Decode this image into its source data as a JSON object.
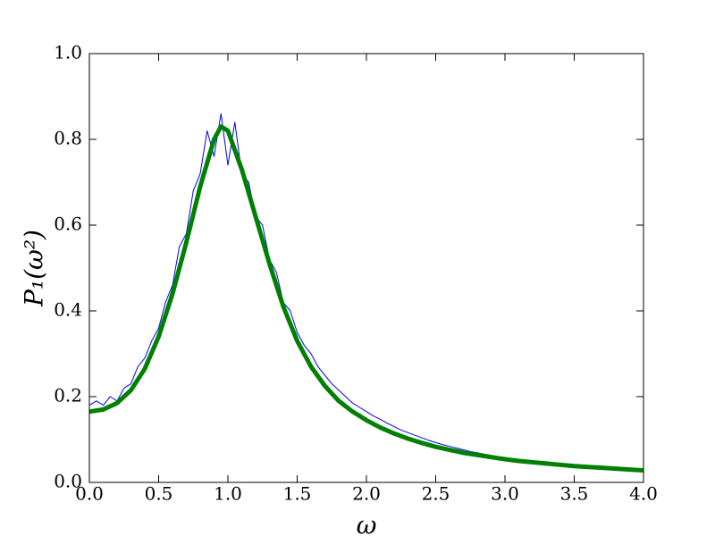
{
  "chart_data": {
    "type": "line",
    "x_label": "ω",
    "y_label": "P₁(ω²)",
    "xlim": [
      0,
      4
    ],
    "ylim": [
      0,
      1
    ],
    "xticks": [
      {
        "value": 0,
        "label": "0.0"
      },
      {
        "value": 0.5,
        "label": "0.5"
      },
      {
        "value": 1,
        "label": "1.0"
      },
      {
        "value": 1.5,
        "label": "1.5"
      },
      {
        "value": 2,
        "label": "2.0"
      },
      {
        "value": 2.5,
        "label": "2.5"
      },
      {
        "value": 3,
        "label": "3.0"
      },
      {
        "value": 3.5,
        "label": "3.5"
      },
      {
        "value": 4,
        "label": "4.0"
      }
    ],
    "yticks": [
      {
        "value": 0,
        "label": "0.0"
      },
      {
        "value": 0.2,
        "label": "0.2"
      },
      {
        "value": 0.4,
        "label": "0.4"
      },
      {
        "value": 0.6,
        "label": "0.6"
      },
      {
        "value": 0.8,
        "label": "0.8"
      },
      {
        "value": 1,
        "label": "1.0"
      }
    ],
    "grid": false,
    "series": [
      {
        "color": "#0000ff",
        "width": 1,
        "x": [
          0,
          0.05,
          0.1,
          0.15,
          0.2,
          0.25,
          0.3,
          0.35,
          0.4,
          0.45,
          0.5,
          0.55,
          0.6,
          0.65,
          0.7,
          0.75,
          0.8,
          0.85,
          0.9,
          0.95,
          1,
          1.05,
          1.1,
          1.15,
          1.2,
          1.25,
          1.3,
          1.35,
          1.4,
          1.45,
          1.5,
          1.55,
          1.6,
          1.65,
          1.7,
          1.75,
          1.8,
          1.85,
          1.9,
          1.95,
          2,
          2.05,
          2.1,
          2.15,
          2.2,
          2.25,
          2.3,
          2.35,
          2.4,
          2.45,
          2.5,
          2.55,
          2.6,
          2.65,
          2.7,
          2.75,
          2.8,
          2.85,
          2.9,
          2.95,
          3,
          3.05,
          3.1,
          3.15,
          3.2,
          3.25,
          3.3,
          3.35,
          3.4,
          3.45,
          3.5
        ],
        "values": [
          0.18,
          0.19,
          0.18,
          0.2,
          0.19,
          0.22,
          0.23,
          0.27,
          0.29,
          0.33,
          0.36,
          0.42,
          0.46,
          0.55,
          0.58,
          0.68,
          0.72,
          0.82,
          0.76,
          0.86,
          0.74,
          0.84,
          0.72,
          0.7,
          0.62,
          0.6,
          0.52,
          0.49,
          0.42,
          0.4,
          0.35,
          0.32,
          0.3,
          0.27,
          0.25,
          0.23,
          0.215,
          0.2,
          0.185,
          0.175,
          0.165,
          0.155,
          0.147,
          0.138,
          0.13,
          0.122,
          0.116,
          0.11,
          0.104,
          0.098,
          0.093,
          0.088,
          0.084,
          0.08,
          0.076,
          0.072,
          0.069,
          0.066,
          0.063,
          0.06,
          0.058,
          0.055,
          0.053,
          0.051,
          0.049,
          0.047,
          0.045,
          0.043,
          0.042,
          0.04,
          0.039
        ]
      },
      {
        "color": "#008000",
        "width": 5,
        "x": [
          0,
          0.1,
          0.2,
          0.3,
          0.4,
          0.5,
          0.6,
          0.7,
          0.8,
          0.9,
          0.95,
          1,
          1.1,
          1.2,
          1.3,
          1.4,
          1.5,
          1.6,
          1.7,
          1.8,
          1.9,
          2,
          2.1,
          2.2,
          2.3,
          2.4,
          2.5,
          2.6,
          2.7,
          2.8,
          2.9,
          3,
          3.1,
          3.2,
          3.3,
          3.4,
          3.5,
          3.6,
          3.7,
          3.8,
          3.9,
          4
        ],
        "values": [
          0.165,
          0.17,
          0.185,
          0.215,
          0.265,
          0.34,
          0.44,
          0.56,
          0.69,
          0.8,
          0.83,
          0.82,
          0.73,
          0.62,
          0.51,
          0.41,
          0.33,
          0.27,
          0.225,
          0.19,
          0.165,
          0.145,
          0.128,
          0.114,
          0.102,
          0.092,
          0.083,
          0.076,
          0.069,
          0.064,
          0.059,
          0.054,
          0.05,
          0.047,
          0.044,
          0.041,
          0.038,
          0.036,
          0.034,
          0.032,
          0.03,
          0.028
        ]
      }
    ]
  }
}
